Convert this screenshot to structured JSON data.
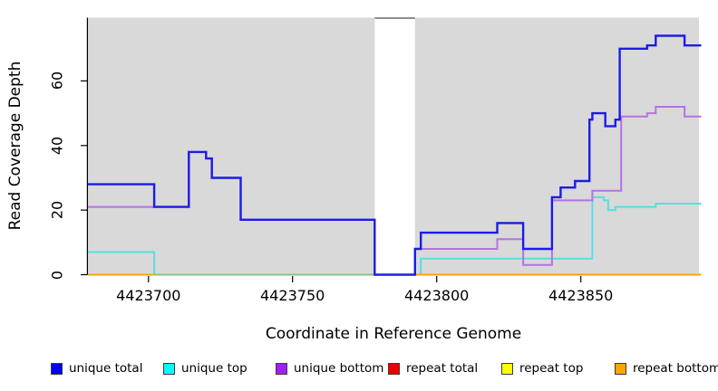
{
  "chart_data": {
    "type": "line",
    "step_mode": "hv",
    "title": "",
    "xlabel": "Coordinate in Reference Genome",
    "ylabel": "Read Coverage Depth",
    "x_ticks": [
      "4423700",
      "4423750",
      "4423800",
      "4423850"
    ],
    "x_tick_values": [
      4423700,
      4423750,
      4423800,
      4423850
    ],
    "y_ticks": [
      "0",
      "20",
      "40",
      "60"
    ],
    "y_tick_values": [
      0,
      20,
      40,
      60
    ],
    "xlim": [
      4423679,
      4423891
    ],
    "ylim": [
      0,
      79.6
    ],
    "x_end_extend": 4423891.8,
    "grid": false,
    "panel_background": "#d9d9d9",
    "legend_position": "bottom",
    "missing_data_region": {
      "from": 4423778.5,
      "to": 4423792.5,
      "fill": "#ffffff",
      "top_border": "#8f8f8f"
    },
    "series": [
      {
        "name": "unique total",
        "color": "#1c1ce6",
        "legend_color": "#0000ee",
        "line_width": 2.4,
        "steps": [
          [
            4423679,
            28
          ],
          [
            4423702,
            21
          ],
          [
            4423714,
            38
          ],
          [
            4423720,
            36
          ],
          [
            4423722,
            30
          ],
          [
            4423732,
            17
          ],
          [
            4423778.5,
            0
          ],
          [
            4423792.5,
            8
          ],
          [
            4423794.5,
            13
          ],
          [
            4423821,
            16
          ],
          [
            4423830,
            8
          ],
          [
            4423840,
            24
          ],
          [
            4423843,
            27
          ],
          [
            4423848,
            29
          ],
          [
            4423853,
            48
          ],
          [
            4423854,
            50
          ],
          [
            4423858.5,
            46
          ],
          [
            4423862,
            48
          ],
          [
            4423863.5,
            70
          ],
          [
            4423873,
            71
          ],
          [
            4423876,
            74
          ],
          [
            4423886,
            71
          ]
        ]
      },
      {
        "name": "unique top",
        "color": "#55e0e0",
        "legend_color": "#00ffff",
        "line_width": 2,
        "steps": [
          [
            4423679,
            7
          ],
          [
            4423702,
            0
          ],
          [
            4423794.5,
            5
          ],
          [
            4423854,
            24
          ],
          [
            4423858,
            23
          ],
          [
            4423859.5,
            20
          ],
          [
            4423862,
            21
          ],
          [
            4423876,
            22
          ]
        ]
      },
      {
        "name": "unique bottom",
        "color": "#b472e2",
        "legend_color": "#a020f0",
        "line_width": 2,
        "steps": [
          [
            4423679,
            21
          ],
          [
            4423714,
            38
          ],
          [
            4423720,
            36
          ],
          [
            4423722,
            30
          ],
          [
            4423732,
            17
          ],
          [
            4423778.5,
            0
          ],
          [
            4423792.5,
            8
          ],
          [
            4423821,
            11
          ],
          [
            4423830,
            3
          ],
          [
            4423840,
            23
          ],
          [
            4423854,
            26
          ],
          [
            4423864,
            49
          ],
          [
            4423873,
            50
          ],
          [
            4423876,
            52
          ],
          [
            4423886,
            49
          ]
        ]
      },
      {
        "name": "repeat total",
        "color": "#e8140f",
        "legend_color": "#ee0000",
        "line_width": 2,
        "steps": [
          [
            4423679,
            0
          ]
        ]
      },
      {
        "name": "repeat top",
        "color": "#f5f50a",
        "legend_color": "#ffff00",
        "line_width": 2,
        "steps": [
          [
            4423679,
            0
          ]
        ]
      },
      {
        "name": "repeat bottom",
        "color": "#ffa500",
        "legend_color": "#ffa500",
        "line_width": 2,
        "steps": [
          [
            4423679,
            0
          ]
        ]
      }
    ],
    "draw_order": [
      3,
      4,
      1,
      5,
      2,
      0
    ],
    "overlap_artifact": {
      "color": "#7ecb7e",
      "value": 0,
      "from": 4423702,
      "to": 4423778.5
    }
  },
  "legend": {
    "items": [
      {
        "label": "unique total",
        "color": "#0000ee"
      },
      {
        "label": "unique top",
        "color": "#00ffff"
      },
      {
        "label": "unique bottom",
        "color": "#a020f0"
      },
      {
        "label": "repeat total",
        "color": "#ee0000"
      },
      {
        "label": "repeat top",
        "color": "#ffff00"
      },
      {
        "label": "repeat bottom",
        "color": "#ffa500"
      }
    ]
  }
}
